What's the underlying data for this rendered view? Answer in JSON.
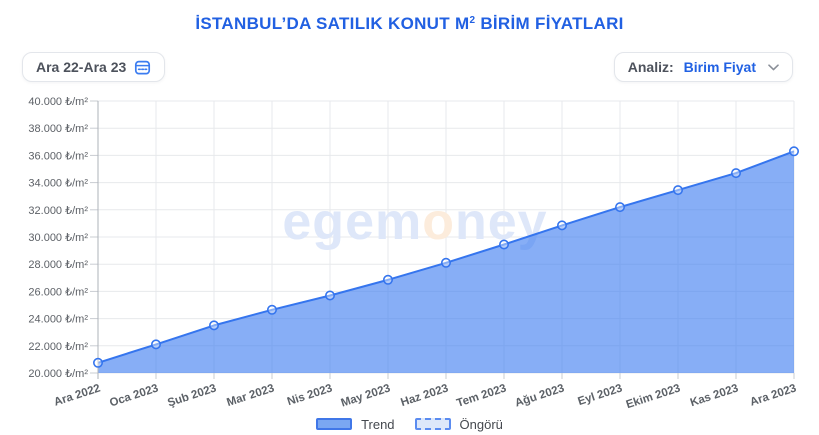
{
  "header": {
    "title_main": "İSTANBUL’DA SATILIK KONUT M",
    "title_sup": "2",
    "title_rest": " BİRİM FİYATLARI"
  },
  "controls": {
    "date_range": {
      "label": "Ara 22-Ara 23"
    },
    "analysis": {
      "label": "Analiz:",
      "value": "Birim Fiyat"
    }
  },
  "watermark": {
    "part1": "egem",
    "accent": "o",
    "part2": "ney"
  },
  "chart_data": {
    "type": "area",
    "title": "İSTANBUL’DA SATILIK KONUT M² BİRİM FİYATLARI",
    "categories": [
      "Ara 2022",
      "Oca 2023",
      "Şub 2023",
      "Mar 2023",
      "Nis 2023",
      "May 2023",
      "Haz 2023",
      "Tem 2023",
      "Ağu 2023",
      "Eyl 2023",
      "Ekim 2023",
      "Kas 2023",
      "Ara 2023"
    ],
    "series": [
      {
        "name": "Trend",
        "values": [
          20750,
          22100,
          23500,
          24650,
          25700,
          26850,
          28100,
          29450,
          30850,
          32200,
          33450,
          34700,
          36300
        ]
      }
    ],
    "xlabel": "",
    "ylabel": "₺/m²",
    "ylim": [
      20000,
      40000
    ],
    "y_step": 2000,
    "y_unit": "₺/m²",
    "y_tick_labels": [
      "20.000 ₺/m²",
      "22.000 ₺/m²",
      "24.000 ₺/m²",
      "26.000 ₺/m²",
      "28.000 ₺/m²",
      "30.000 ₺/m²",
      "32.000 ₺/m²",
      "34.000 ₺/m²",
      "36.000 ₺/m²",
      "38.000 ₺/m²",
      "40.000 ₺/m²"
    ],
    "grid": true,
    "legend": {
      "position": "bottom",
      "items": [
        {
          "label": "Trend",
          "style": "solid"
        },
        {
          "label": "Öngörü",
          "style": "dashed"
        }
      ]
    }
  },
  "colors": {
    "title": "#2160e2",
    "line": "#3575ee",
    "area_fill": "rgba(62,125,241,0.62)",
    "grid": "#e7e9ec",
    "axis": "#aeb3ba",
    "tick": "#c9ccd2",
    "tick_text": "#5d6167",
    "accent_blue": "#2161e3",
    "watermark_blue": "#dee7f9",
    "watermark_orange": "#fcecdc",
    "legend_solid_fill": "#7aa7f2",
    "legend_solid_border": "#4077e8",
    "legend_dashed_fill": "#dde8fa",
    "legend_dashed_border": "#5b8cf0"
  }
}
